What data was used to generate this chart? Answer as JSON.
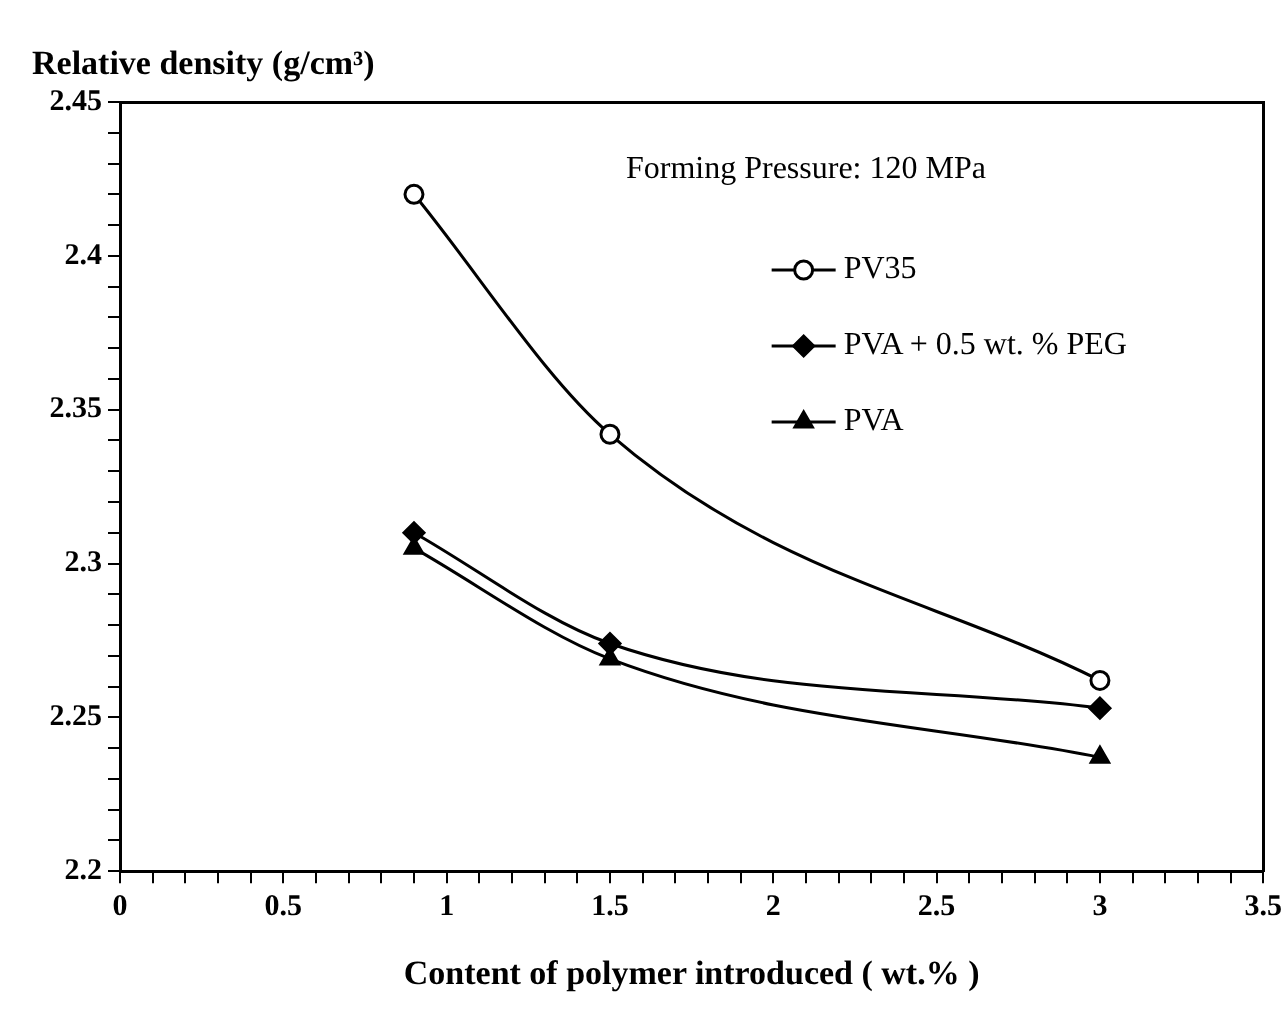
{
  "chart_data": {
    "type": "line",
    "ylabel": "Relative density (g/cm³)",
    "xlabel": "Content of polymer introduced ( wt.% )",
    "annotations": [
      "Forming Pressure: 120 MPa"
    ],
    "x": [
      0.9,
      1.5,
      3
    ],
    "series": [
      {
        "name": "PV35",
        "color": "#000000",
        "marker": "circle",
        "values": [
          2.42,
          2.342,
          2.262
        ]
      },
      {
        "name": "PVA + 0.5 wt. % PEG",
        "color": "#000000",
        "marker": "diamond",
        "values": [
          2.31,
          2.274,
          2.253
        ]
      },
      {
        "name": "PVA",
        "color": "#000000",
        "marker": "triangle",
        "values": [
          2.305,
          2.269,
          2.237
        ]
      }
    ],
    "xlim": [
      0,
      3.5
    ],
    "xticks": [
      0,
      {
        "value": 0.1,
        "label": null
      },
      {
        "value": 0.2,
        "label": null
      },
      {
        "value": 0.3,
        "label": null
      },
      {
        "value": 0.4,
        "label": null
      },
      0.5,
      {
        "value": 0.6,
        "label": null
      },
      {
        "value": 0.7,
        "label": null
      },
      {
        "value": 0.8,
        "label": null
      },
      {
        "value": 0.9,
        "label": null
      },
      1,
      {
        "value": 1.1,
        "label": null
      },
      {
        "value": 1.2,
        "label": null
      },
      {
        "value": 1.3,
        "label": null
      },
      {
        "value": 1.4,
        "label": null
      },
      1.5,
      {
        "value": 1.6,
        "label": null
      },
      {
        "value": 1.7,
        "label": null
      },
      {
        "value": 1.8,
        "label": null
      },
      {
        "value": 1.9,
        "label": null
      },
      2,
      {
        "value": 2.1,
        "label": null
      },
      {
        "value": 2.2,
        "label": null
      },
      {
        "value": 2.3,
        "label": null
      },
      {
        "value": 2.4,
        "label": null
      },
      2.5,
      {
        "value": 2.6,
        "label": null
      },
      {
        "value": 2.7,
        "label": null
      },
      {
        "value": 2.8,
        "label": null
      },
      {
        "value": 2.9,
        "label": null
      },
      3,
      {
        "value": 3.1,
        "label": null
      },
      {
        "value": 3.2,
        "label": null
      },
      {
        "value": 3.3,
        "label": null
      },
      {
        "value": 3.4,
        "label": null
      },
      3.5
    ],
    "ylim": [
      2.2,
      2.45
    ],
    "yticks": [
      2.2,
      {
        "value": 2.21,
        "label": null
      },
      {
        "value": 2.22,
        "label": null
      },
      {
        "value": 2.23,
        "label": null
      },
      {
        "value": 2.24,
        "label": null
      },
      2.25,
      {
        "value": 2.26,
        "label": null
      },
      {
        "value": 2.27,
        "label": null
      },
      {
        "value": 2.28,
        "label": null
      },
      {
        "value": 2.29,
        "label": null
      },
      2.3,
      {
        "value": 2.31,
        "label": null
      },
      {
        "value": 2.32,
        "label": null
      },
      {
        "value": 2.33,
        "label": null
      },
      {
        "value": 2.34,
        "label": null
      },
      2.35,
      {
        "value": 2.36,
        "label": null
      },
      {
        "value": 2.37,
        "label": null
      },
      {
        "value": 2.38,
        "label": null
      },
      {
        "value": 2.39,
        "label": null
      },
      2.4,
      {
        "value": 2.41,
        "label": null
      },
      {
        "value": 2.42,
        "label": null
      },
      {
        "value": 2.43,
        "label": null
      },
      {
        "value": 2.44,
        "label": null
      },
      2.45
    ],
    "grid": false,
    "legend": "top right",
    "line_style": "solid"
  }
}
